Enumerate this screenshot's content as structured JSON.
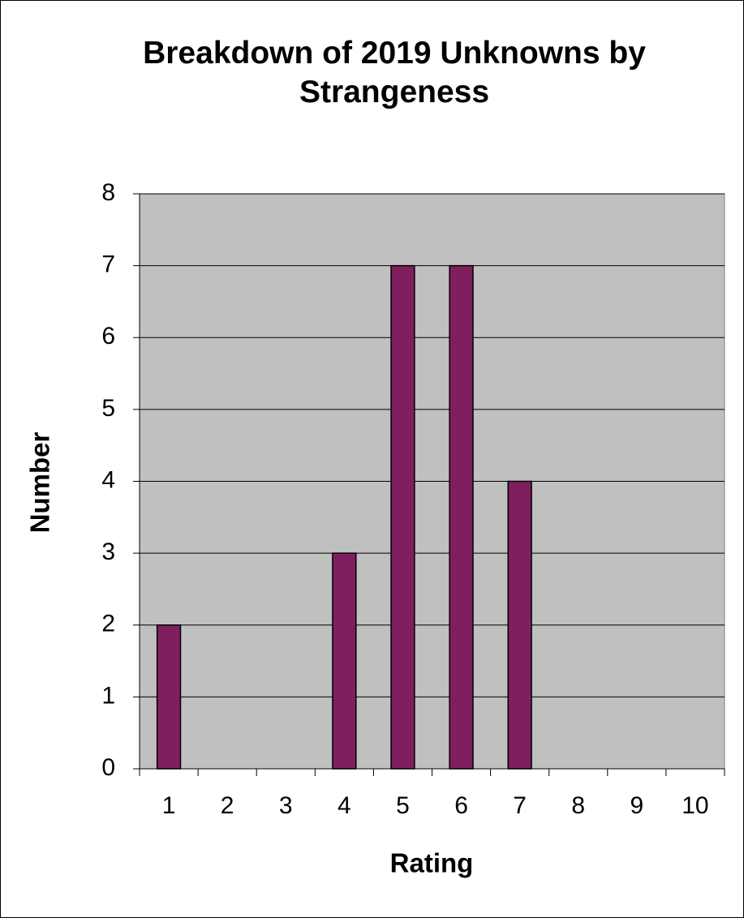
{
  "chart_data": {
    "type": "bar",
    "title": "Breakdown of 2019 Unknowns by Strangeness",
    "x_label": "Rating",
    "y_label": "Number",
    "categories": [
      "1",
      "2",
      "3",
      "4",
      "5",
      "6",
      "7",
      "8",
      "9",
      "10"
    ],
    "values": [
      2,
      0,
      0,
      3,
      7,
      7,
      4,
      0,
      0,
      0
    ],
    "color": "#801f5f",
    "ylim": [
      0,
      8
    ],
    "yticks": [
      0,
      1,
      2,
      3,
      4,
      5,
      6,
      7,
      8
    ],
    "grid": true
  }
}
